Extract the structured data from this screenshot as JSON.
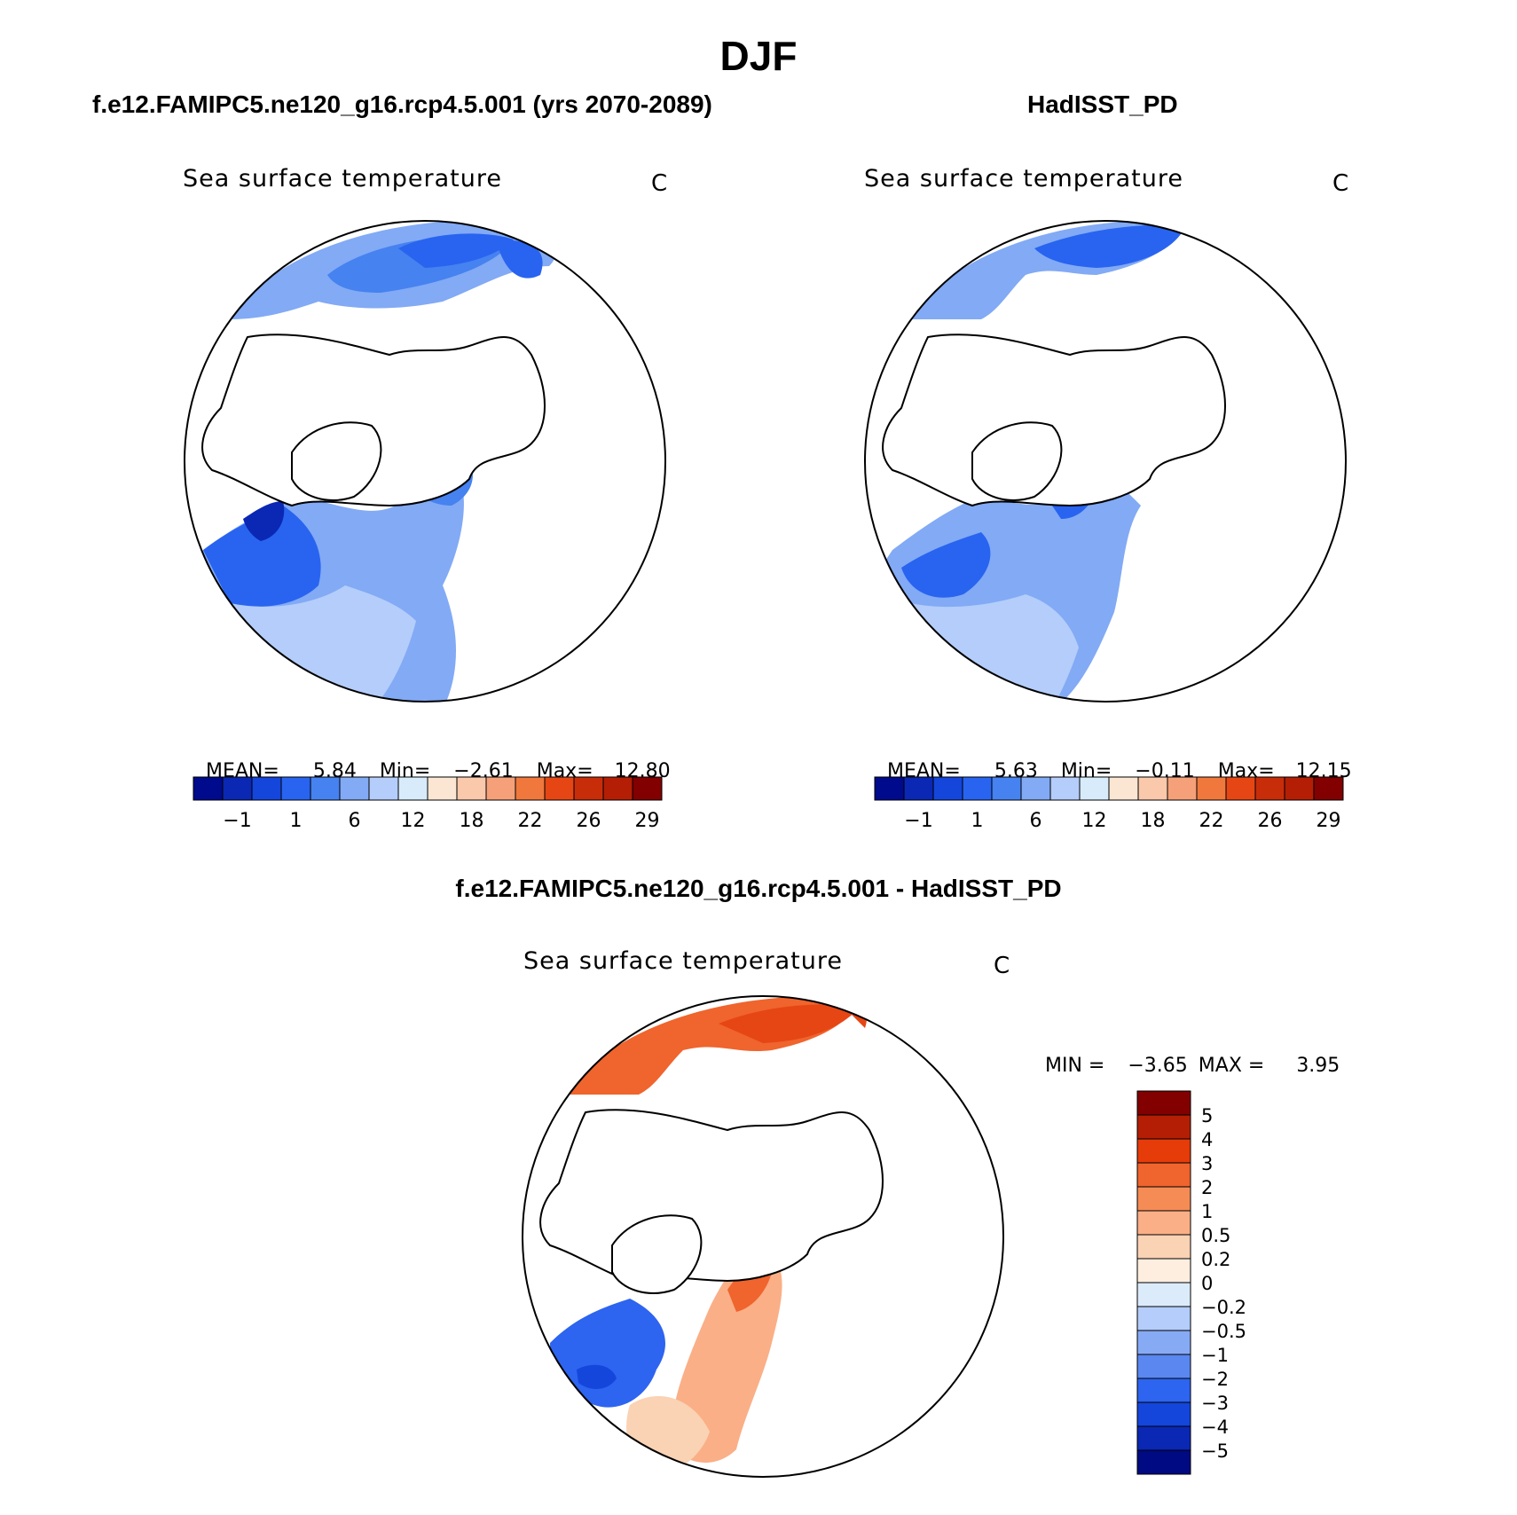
{
  "page_title": "DJF",
  "panels": {
    "model": {
      "case_title": "f.e12.FAMIPC5.ne120_g16.rcp4.5.001 (yrs 2070-2089)",
      "plot_title": "Sea surface temperature",
      "units": "C",
      "stats": {
        "mean_label": "MEAN=",
        "mean": "5.84",
        "min_label": "Min=",
        "min": "−2.61",
        "max_label": "Max=",
        "max": "12.80"
      }
    },
    "obs": {
      "case_title": "HadISST_PD",
      "plot_title": "Sea surface temperature",
      "units": "C",
      "stats": {
        "mean_label": "MEAN=",
        "mean": "5.63",
        "min_label": "Min=",
        "min": "−0.11",
        "max_label": "Max=",
        "max": "12.15"
      }
    },
    "diff": {
      "case_title": "f.e12.FAMIPC5.ne120_g16.rcp4.5.001 - HadISST_PD",
      "plot_title": "Sea surface temperature",
      "units": "C",
      "minmax": {
        "min_label": "MIN =",
        "min": "−3.65",
        "max_label": "MAX =",
        "max": "3.95"
      }
    }
  },
  "abs_colorbar": {
    "colors": [
      "#000a8c",
      "#0a28b4",
      "#1446dc",
      "#2864f0",
      "#4682f0",
      "#82aaf5",
      "#b4cdfa",
      "#d7ebfa",
      "#fae6d2",
      "#fac8aa",
      "#f5a078",
      "#f0783c",
      "#e64614",
      "#c82d0a",
      "#b41e05",
      "#820000"
    ],
    "tick_labels": [
      "−1",
      "1",
      "6",
      "12",
      "18",
      "22",
      "26",
      "29"
    ]
  },
  "diff_colorbar": {
    "colors": [
      "#820000",
      "#b41e05",
      "#e63c0a",
      "#f0642d",
      "#f58c55",
      "#faaf87",
      "#fad2b4",
      "#fdeee0",
      "#dcebfa",
      "#b4cdfa",
      "#87aaf5",
      "#5a87f0",
      "#2d64f0",
      "#1446dc",
      "#0a28b4",
      "#000a82"
    ],
    "tick_labels": [
      "5",
      "4",
      "3",
      "2",
      "1",
      "0.5",
      "0.2",
      "0",
      "−0.2",
      "−0.5",
      "−1",
      "−2",
      "−3",
      "−4",
      "−5"
    ]
  },
  "map_colors": {
    "ocean_blue_light": "#b4cdfa",
    "ocean_blue_mid": "#82aaf5",
    "ocean_blue": "#4682f0",
    "ocean_blue_dark": "#2864f0",
    "ocean_blue_deep": "#1446dc",
    "ocean_navy": "#0a28b4",
    "diff_red": "#f0642d",
    "diff_red_dark": "#e64614",
    "diff_peach": "#faaf87",
    "diff_pale": "#fad2b4"
  }
}
